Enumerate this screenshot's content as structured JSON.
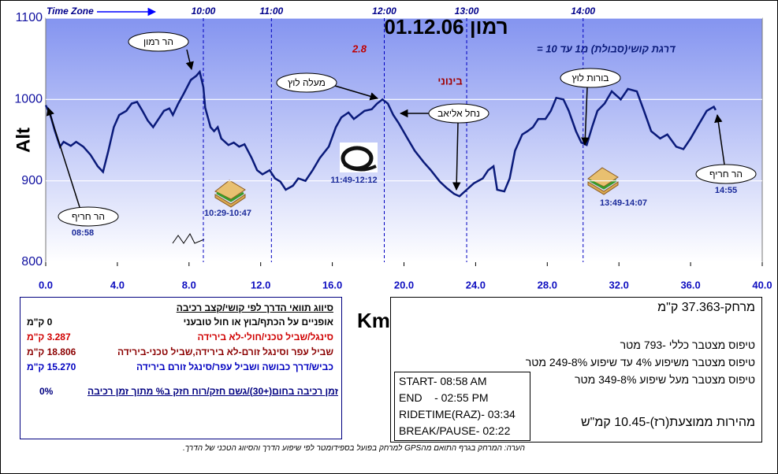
{
  "chart_data": {
    "type": "line",
    "title": "רמון 01.12.06",
    "subtitle": "דרגת קושי(סבולת) מ1 עד 10 =",
    "difficulty": "2.8",
    "difficulty_level": "בינוני",
    "y_label": "Alt",
    "x_label": "Km",
    "time_zone_label": "Time Zone",
    "color": "#0a1a7a",
    "ylim": [
      800,
      1100
    ],
    "yticks": [
      800,
      900,
      1000,
      1100
    ],
    "xlim": [
      0,
      40
    ],
    "xticks": [
      {
        "value": 0,
        "label": "0.0"
      },
      {
        "value": 4,
        "label": "4.0"
      },
      {
        "value": 8,
        "label": "8.0"
      },
      {
        "value": 12,
        "label": "12.0"
      },
      {
        "value": 16,
        "label": "16.0"
      },
      {
        "value": 20,
        "label": "20.0"
      },
      {
        "value": 24,
        "label": "24.0"
      },
      {
        "value": 28,
        "label": "28.0"
      },
      {
        "value": 32,
        "label": "32.0"
      },
      {
        "value": 36,
        "label": "36.0"
      },
      {
        "value": 40,
        "label": "40.0"
      }
    ],
    "grid": true,
    "time_markers": [
      {
        "label": "10:00",
        "x": 8.8
      },
      {
        "label": "11:00",
        "x": 12.6
      },
      {
        "label": "12:00",
        "x": 18.9
      },
      {
        "label": "13:00",
        "x": 23.5
      },
      {
        "label": "14:00",
        "x": 30.0
      }
    ],
    "x": [
      0,
      0.26,
      0.5,
      0.8,
      1.0,
      1.4,
      1.7,
      2.1,
      2.5,
      2.9,
      3.2,
      3.5,
      3.8,
      4.1,
      4.5,
      4.8,
      5.1,
      5.4,
      5.7,
      6.0,
      6.3,
      6.6,
      6.9,
      7.1,
      7.4,
      7.7,
      8.1,
      8.4,
      8.6,
      8.8,
      8.9,
      9.2,
      9.4,
      9.6,
      9.8,
      10.2,
      10.5,
      10.8,
      11.1,
      11.5,
      11.8,
      12.1,
      12.5,
      12.8,
      13.1,
      13.4,
      13.8,
      14.1,
      14.5,
      14.9,
      15.3,
      15.8,
      16.2,
      16.5,
      16.9,
      17.2,
      17.5,
      17.8,
      18.2,
      18.5,
      18.8,
      19.1,
      19.4,
      19.7,
      20.2,
      20.6,
      21.1,
      21.5,
      22.0,
      22.4,
      22.8,
      23.1,
      23.5,
      23.9,
      24.4,
      24.7,
      25.0,
      25.2,
      25.6,
      25.9,
      26.2,
      26.6,
      26.9,
      27.2,
      27.5,
      27.9,
      28.2,
      28.5,
      28.9,
      29.2,
      29.6,
      29.9,
      30.2,
      30.5,
      30.8,
      31.2,
      31.6,
      32.1,
      32.5,
      33.0,
      33.4,
      33.8,
      34.3,
      34.7,
      35.2,
      35.6,
      36.0,
      36.5,
      36.9,
      37.3,
      37.4
    ],
    "values": [
      993,
      981,
      962,
      942,
      948,
      943,
      948,
      942,
      932,
      918,
      911,
      937,
      966,
      981,
      986,
      995,
      997,
      986,
      974,
      966,
      976,
      986,
      989,
      981,
      995,
      1007,
      1024,
      1029,
      1034,
      1015,
      990,
      966,
      961,
      966,
      952,
      944,
      947,
      942,
      945,
      928,
      913,
      908,
      913,
      903,
      899,
      889,
      894,
      903,
      900,
      913,
      928,
      942,
      966,
      978,
      984,
      976,
      981,
      986,
      988,
      995,
      1000,
      995,
      981,
      971,
      952,
      937,
      923,
      913,
      899,
      891,
      884,
      881,
      889,
      897,
      903,
      913,
      918,
      889,
      887,
      903,
      937,
      957,
      961,
      966,
      976,
      976,
      986,
      1002,
      1000,
      986,
      961,
      947,
      944,
      966,
      986,
      995,
      1010,
      1000,
      1013,
      1010,
      986,
      961,
      952,
      957,
      942,
      939,
      952,
      971,
      986,
      991,
      987
    ],
    "annotations": [
      "הר רמון",
      "מעלה לוץ",
      "נחל אליאב",
      "בורות לוץ",
      "הר חריף",
      "הר חריף"
    ],
    "time_labels": [
      "08:58",
      "10:29-10:47",
      "11:49-12:12",
      "13:49-14:07",
      "14:55"
    ]
  },
  "legend_box": {
    "title": "סיווג תוואי הדרך לפי קושי/קצב רכיבה",
    "rows": [
      [
        "אופניים על הכתף/בוץ או חול טובעני",
        "0 ק\"מ"
      ],
      [
        "סינגל/שביל טכני/חולי-לא בירידה",
        "3.287 ק\"מ"
      ],
      [
        "שביל עפר וסינגל זורם-לא בירידה,שביל טכני-בירידה",
        "18.806 ק\"מ"
      ],
      [
        "כביש/דרך כבושה ושביל עפר/סינגל זורם בירידה",
        "15.270 ק\"מ"
      ]
    ],
    "footer": "זמן רכיבה בחום(+30)/גשם חזק/רוח חזק ב% מתוך זמן רכיבה",
    "footer_value": "0%"
  },
  "summary_box": {
    "distance": "מרחק-37.363 ק\"מ",
    "climb_total": "טיפוס מצטבר כללי -793 מטר",
    "climb_4_8": "טיפוס מצטבר משיפוע 4% עד שיפוע 8%-249 מטר",
    "climb_8": "טיפוס מצטבר מעל שיפוע 8%-349 מטר",
    "speed": "מהירות ממוצעת(רז)-10.45 קמ\"ש",
    "times": [
      "START- 08:58 AM",
      "END    - 02:55 PM",
      "RIDETIME(RAZ)- 03:34",
      "BREAK/PAUSE- 02:22"
    ]
  },
  "footnote": "הערה: המרחק בגרף התואם מהGPS למרחק בפועל בספידומטר לפי שיפוע הדרך והסיווג הטכני של הדרך."
}
